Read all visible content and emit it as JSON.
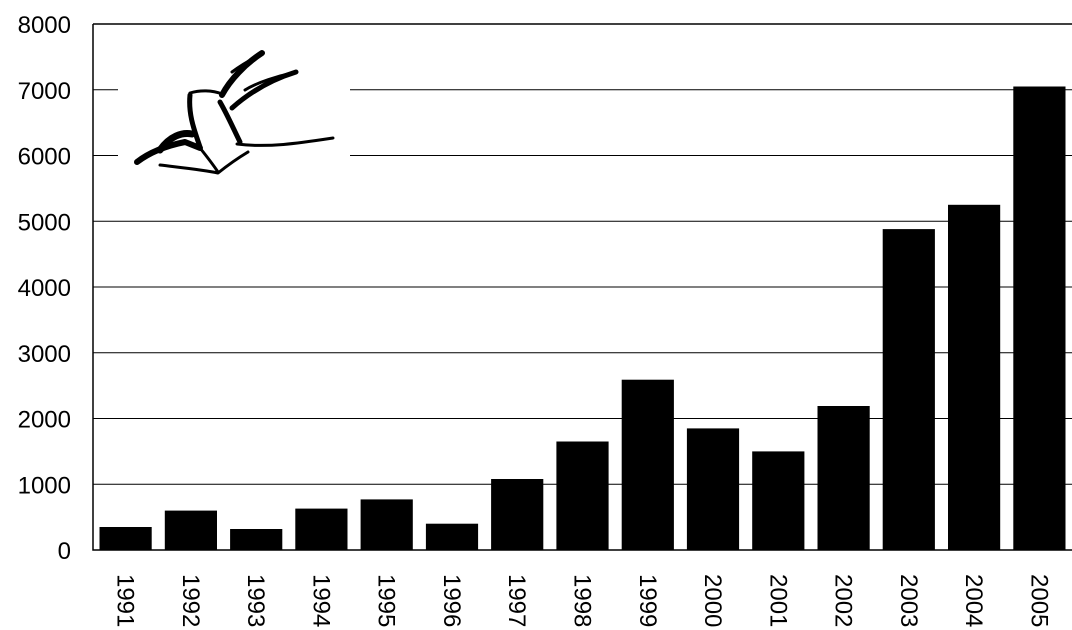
{
  "chart_data": {
    "type": "bar",
    "title": "",
    "xlabel": "",
    "ylabel": "",
    "categories": [
      "1991",
      "1992",
      "1993",
      "1994",
      "1995",
      "1996",
      "1997",
      "1998",
      "1999",
      "2000",
      "2001",
      "2002",
      "2003",
      "2004",
      "2005"
    ],
    "values": [
      350,
      600,
      320,
      630,
      770,
      400,
      1080,
      1650,
      2590,
      1850,
      1500,
      2190,
      4880,
      5250,
      7050
    ],
    "ylim": [
      0,
      8000
    ],
    "yticks": [
      0,
      1000,
      2000,
      3000,
      4000,
      5000,
      6000,
      7000,
      8000
    ],
    "grid": "horizontal",
    "legend": "none",
    "bar_color": "#000000",
    "logo": "bird-logo"
  }
}
